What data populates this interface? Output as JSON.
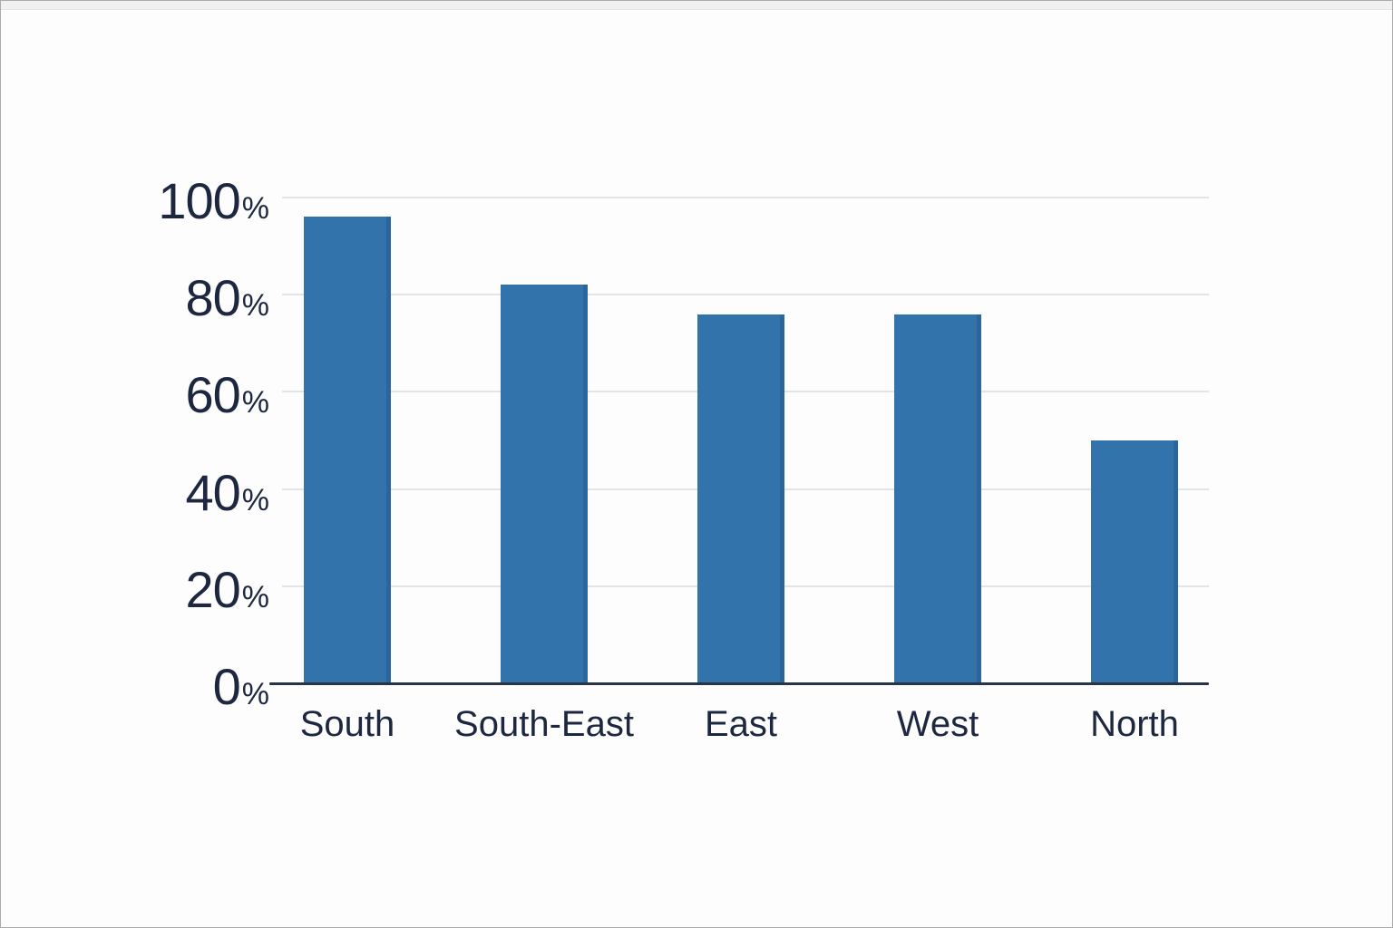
{
  "window": {
    "top_strip": ""
  },
  "colors": {
    "background": "#fdfdfd",
    "frame_border": "#ababab",
    "top_strip": "#f1f1f2",
    "bar": "#3273ab",
    "axis_line": "#2a3447",
    "gridline": "#e4e4e7",
    "label_text": "#1d2840"
  },
  "chart_data": {
    "type": "bar",
    "title": "",
    "xlabel": "",
    "ylabel": "",
    "categories": [
      "South",
      "South-East",
      "East",
      "West",
      "North"
    ],
    "values": [
      96,
      82,
      76,
      76,
      50
    ],
    "unit": "%",
    "ylim": [
      0,
      100
    ],
    "yticks": [
      0,
      20,
      40,
      60,
      80,
      100
    ],
    "ytick_suffix": "%",
    "grid": true,
    "legend": false,
    "bar_color": "#3273ab"
  }
}
